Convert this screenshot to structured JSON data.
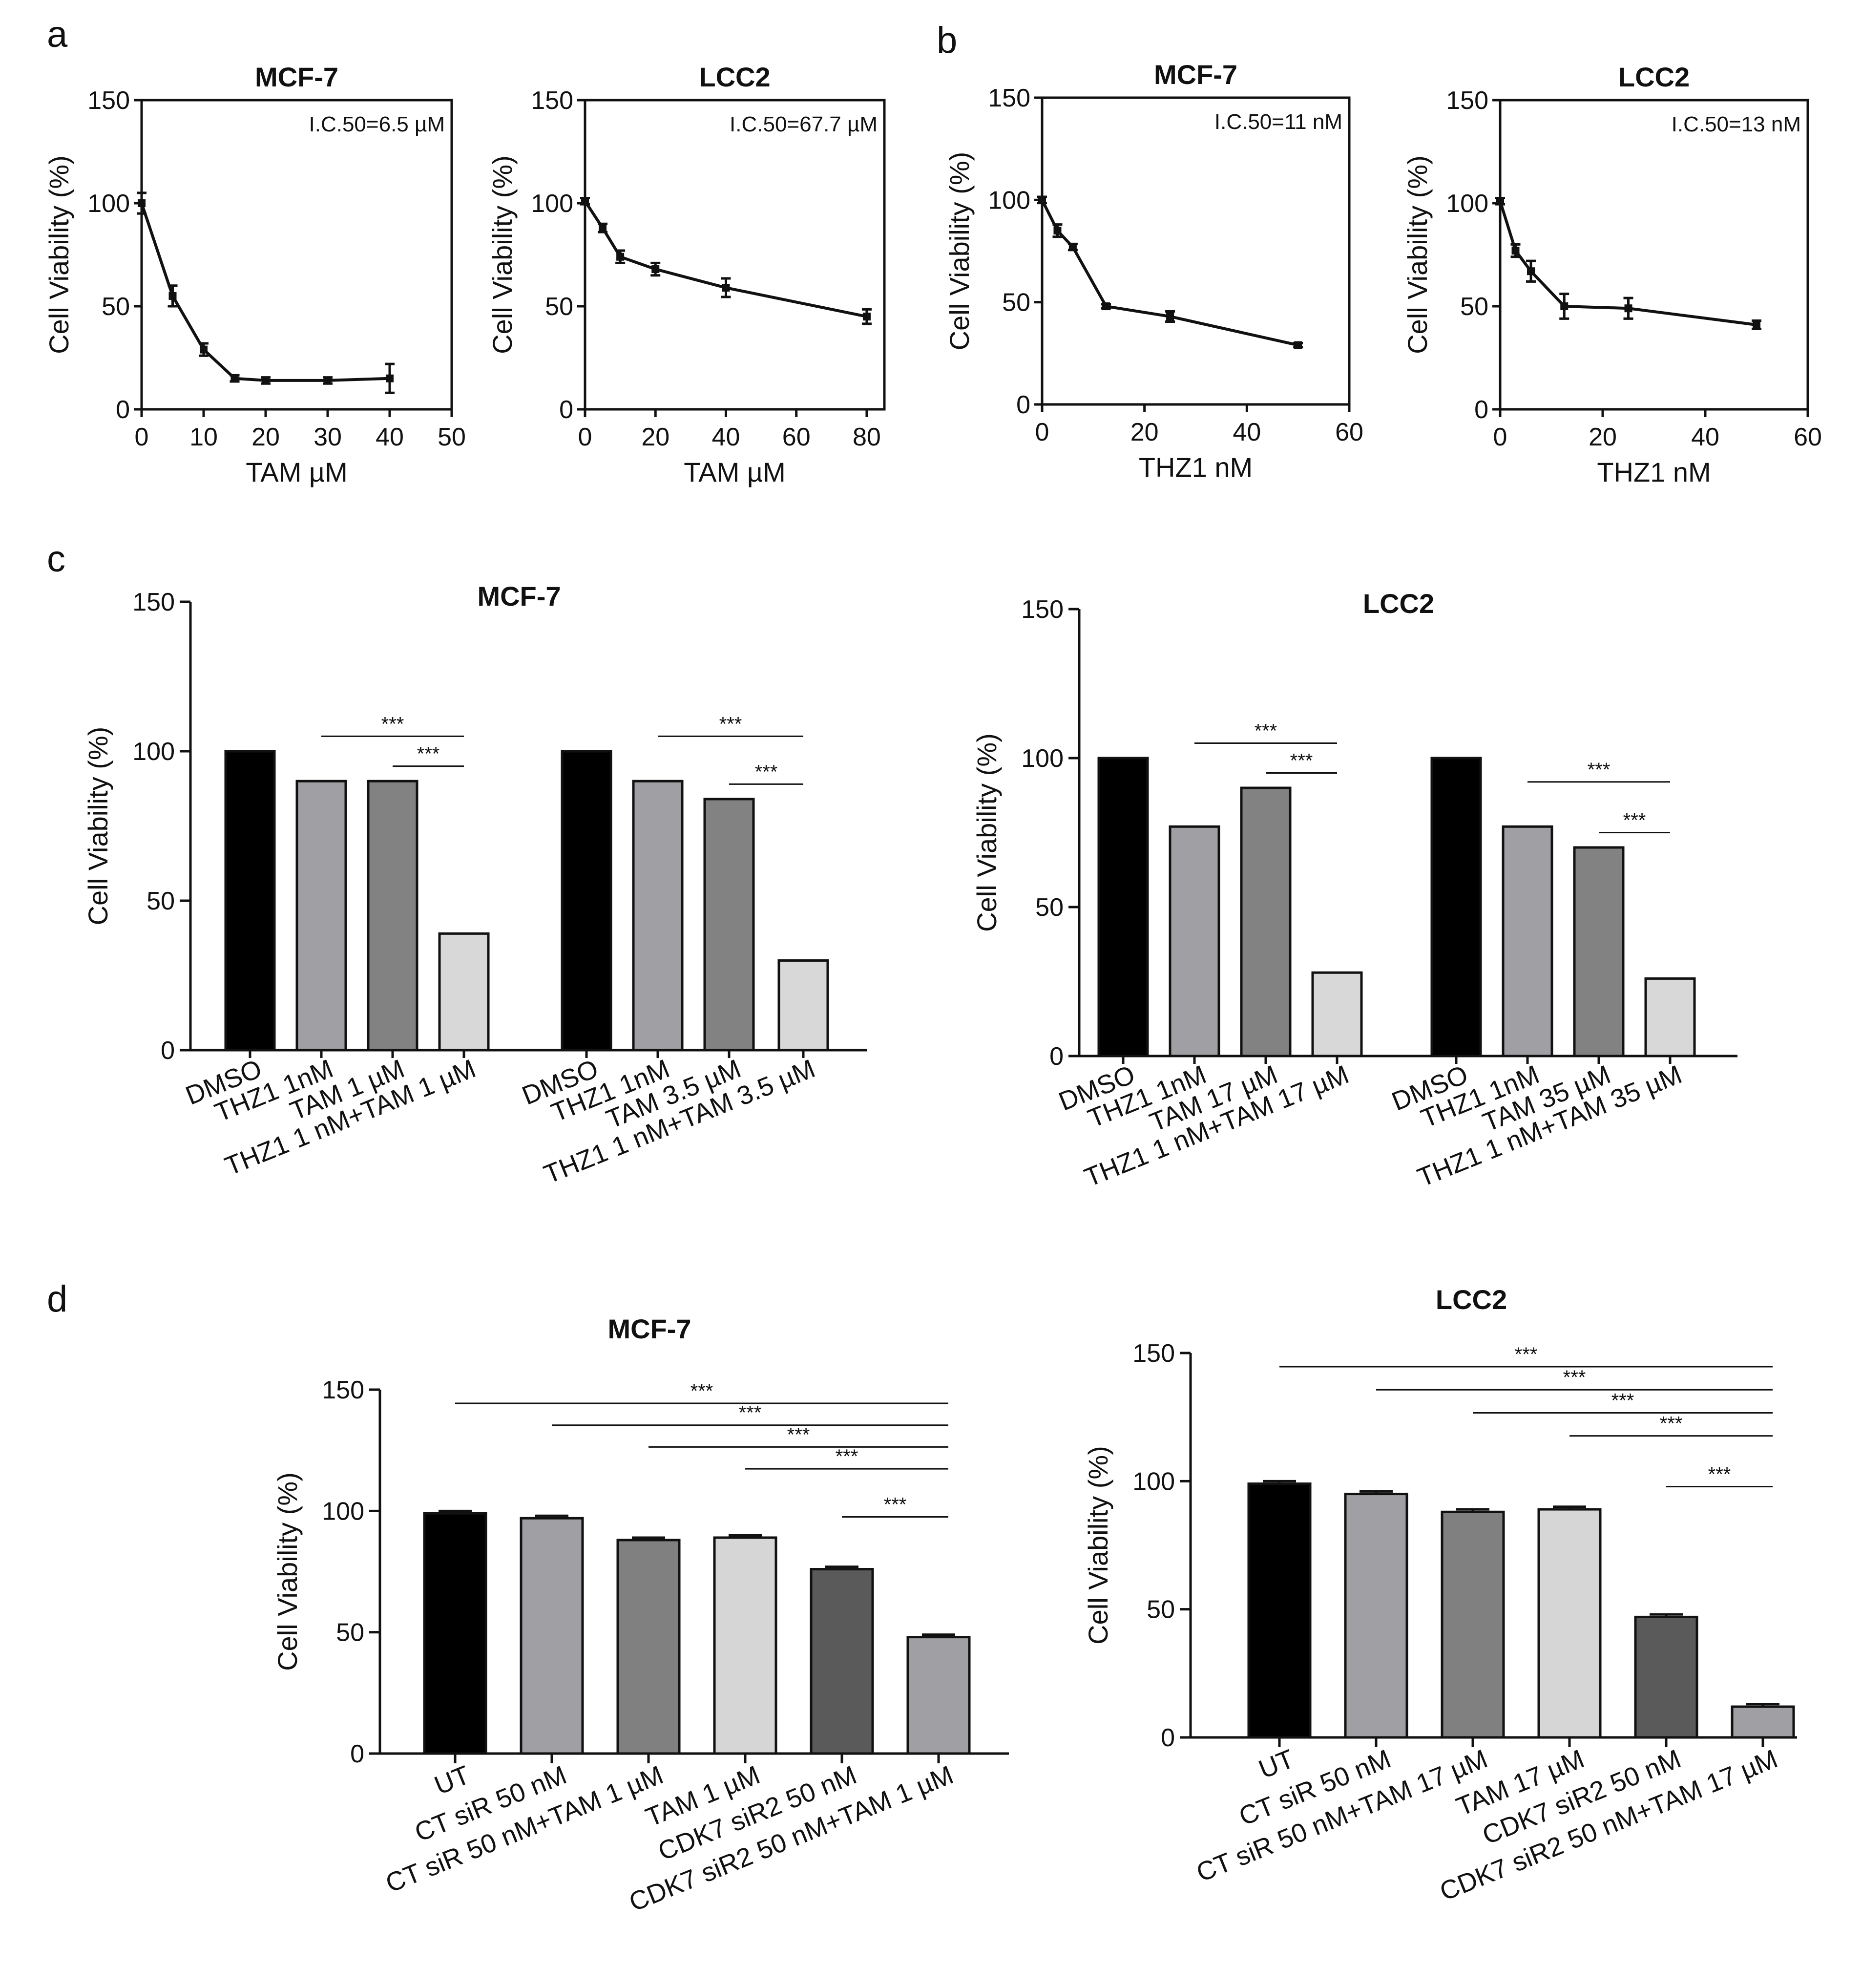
{
  "panel_letters": [
    "a",
    "b",
    "c",
    "d"
  ],
  "chart_data": [
    {
      "id": "a1",
      "panel": "a",
      "type": "line",
      "title": "MCF-7",
      "xlabel": "TAM µM",
      "ylabel": "Cell Viability (%)",
      "xlim": [
        0,
        50
      ],
      "ylim": [
        0,
        150
      ],
      "xticks": [
        0,
        10,
        20,
        30,
        40,
        50
      ],
      "yticks": [
        0,
        50,
        100,
        150
      ],
      "annotation": "I.C.50=6.5 µM",
      "x": [
        0,
        5,
        10,
        15,
        20,
        30,
        40
      ],
      "y": [
        100,
        55,
        29,
        15,
        14,
        14,
        15
      ],
      "err": [
        5,
        5,
        3,
        1.5,
        1.5,
        1.5,
        7
      ]
    },
    {
      "id": "a2",
      "panel": "a",
      "type": "line",
      "title": "LCC2",
      "xlabel": "TAM µM",
      "ylabel": "Cell Viability (%)",
      "xlim": [
        0,
        85
      ],
      "ylim": [
        0,
        150
      ],
      "xticks": [
        0,
        20,
        40,
        60,
        80
      ],
      "yticks": [
        0,
        50,
        100,
        150
      ],
      "annotation": "I.C.50=67.7 µM",
      "x": [
        0,
        5,
        10,
        20,
        40,
        80
      ],
      "y": [
        101,
        88,
        74,
        68,
        59,
        45
      ],
      "err": [
        1.5,
        2,
        3,
        3,
        4.5,
        3.5
      ]
    },
    {
      "id": "b1",
      "panel": "b",
      "type": "line",
      "title": "MCF-7",
      "xlabel": "THZ1 nM",
      "ylabel": "Cell Viability (%)",
      "xlim": [
        0,
        60
      ],
      "ylim": [
        0,
        150
      ],
      "xticks": [
        0,
        20,
        40,
        60
      ],
      "yticks": [
        0,
        50,
        100,
        150
      ],
      "annotation": "I.C.50=11 nM",
      "x": [
        0,
        3,
        6,
        12.5,
        25,
        50
      ],
      "y": [
        100,
        85,
        77,
        48,
        43,
        29
      ],
      "err": [
        1.5,
        3,
        1.5,
        1,
        2.5,
        1
      ]
    },
    {
      "id": "b2",
      "panel": "b",
      "type": "line",
      "title": "LCC2",
      "xlabel": "THZ1 nM",
      "ylabel": "Cell Viability (%)",
      "xlim": [
        0,
        60
      ],
      "ylim": [
        0,
        150
      ],
      "xticks": [
        0,
        20,
        40,
        60
      ],
      "yticks": [
        0,
        50,
        100,
        150
      ],
      "annotation": "I.C.50=13 nM",
      "x": [
        0,
        3,
        6,
        12.5,
        25,
        50
      ],
      "y": [
        101,
        77,
        67,
        50,
        49,
        41
      ],
      "err": [
        1.5,
        3,
        5,
        6,
        5,
        2
      ]
    },
    {
      "id": "c1",
      "panel": "c",
      "type": "bar",
      "title": "MCF-7",
      "ylabel": "Cell Viability (%)",
      "ylim": [
        0,
        150
      ],
      "yticks": [
        0,
        50,
        100,
        150
      ],
      "groups": [
        {
          "categories": [
            "DMSO",
            "THZ1 1nM",
            "TAM 1 µM",
            "THZ1 1 nM+TAM 1 µM"
          ],
          "values": [
            100,
            90,
            90,
            39
          ]
        },
        {
          "categories": [
            "DMSO",
            "THZ1 1nM",
            "TAM 3.5 µM",
            "THZ1 1 nM+TAM 3.5 µM"
          ],
          "values": [
            100,
            90,
            84,
            30
          ]
        }
      ],
      "significance": [
        {
          "group": 0,
          "from": 1,
          "to": 3,
          "label": "***"
        },
        {
          "group": 0,
          "from": 2,
          "to": 3,
          "label": "***"
        },
        {
          "group": 1,
          "from": 1,
          "to": 3,
          "label": "***"
        },
        {
          "group": 1,
          "from": 2,
          "to": 3,
          "label": "***"
        }
      ]
    },
    {
      "id": "c2",
      "panel": "c",
      "type": "bar",
      "title": "LCC2",
      "ylabel": "Cell Viability (%)",
      "ylim": [
        0,
        150
      ],
      "yticks": [
        0,
        50,
        100,
        150
      ],
      "groups": [
        {
          "categories": [
            "DMSO",
            "THZ1 1nM",
            "TAM 17 µM",
            "THZ1 1 nM+TAM 17 µM"
          ],
          "values": [
            100,
            77,
            90,
            28
          ]
        },
        {
          "categories": [
            "DMSO",
            "THZ1 1nM",
            "TAM 35 µM",
            "THZ1 1 nM+TAM 35 µM"
          ],
          "values": [
            100,
            77,
            70,
            26
          ]
        }
      ],
      "significance": [
        {
          "group": 0,
          "from": 1,
          "to": 3,
          "label": "***"
        },
        {
          "group": 0,
          "from": 2,
          "to": 3,
          "label": "***"
        },
        {
          "group": 1,
          "from": 1,
          "to": 3,
          "label": "***"
        },
        {
          "group": 1,
          "from": 2,
          "to": 3,
          "label": "***"
        }
      ]
    },
    {
      "id": "d1",
      "panel": "d",
      "type": "bar",
      "title": "MCF-7",
      "ylabel": "Cell Viability (%)",
      "ylim": [
        0,
        150
      ],
      "yticks": [
        0,
        50,
        100,
        150
      ],
      "categories": [
        "UT",
        "CT siR 50 nM",
        "CT siR 50 nM+TAM 1 µM",
        "TAM 1 µM",
        "CDK7 siR2 50 nM",
        "CDK7 siR2 50 nM+TAM 1 µM"
      ],
      "values": [
        99,
        97,
        88,
        89,
        76,
        48
      ],
      "err": [
        1,
        1,
        1,
        1,
        1,
        1
      ],
      "significance": [
        {
          "from": 0,
          "to": 5,
          "label": "***"
        },
        {
          "from": 1,
          "to": 5,
          "label": "***"
        },
        {
          "from": 2,
          "to": 5,
          "label": "***"
        },
        {
          "from": 3,
          "to": 5,
          "label": "***"
        },
        {
          "from": 4,
          "to": 5,
          "label": "***"
        }
      ]
    },
    {
      "id": "d2",
      "panel": "d",
      "type": "bar",
      "title": "LCC2",
      "ylabel": "Cell Viability (%)",
      "ylim": [
        0,
        150
      ],
      "yticks": [
        0,
        50,
        100,
        150
      ],
      "categories": [
        "UT",
        "CT siR 50 nM",
        "CT siR 50 nM+TAM 17 µM",
        "TAM 17 µM",
        "CDK7 siR2 50 nM",
        "CDK7 siR2 50 nM+TAM 17 µM"
      ],
      "values": [
        99,
        95,
        88,
        89,
        47,
        12
      ],
      "err": [
        1,
        1,
        1,
        1,
        1,
        1
      ],
      "significance": [
        {
          "from": 0,
          "to": 5,
          "label": "***"
        },
        {
          "from": 1,
          "to": 5,
          "label": "***"
        },
        {
          "from": 2,
          "to": 5,
          "label": "***"
        },
        {
          "from": 3,
          "to": 5,
          "label": "***"
        },
        {
          "from": 4,
          "to": 5,
          "label": "***"
        }
      ]
    }
  ],
  "colors": {
    "axis": "#111111",
    "bars_c": [
      "#000000",
      "#a0a0a4",
      "#828282",
      "#d8d8d8"
    ],
    "bars_d": [
      "#000000",
      "#a0a0a4",
      "#808080",
      "#d6d6d6",
      "#5a5a5a",
      "#a0a0a4"
    ]
  }
}
